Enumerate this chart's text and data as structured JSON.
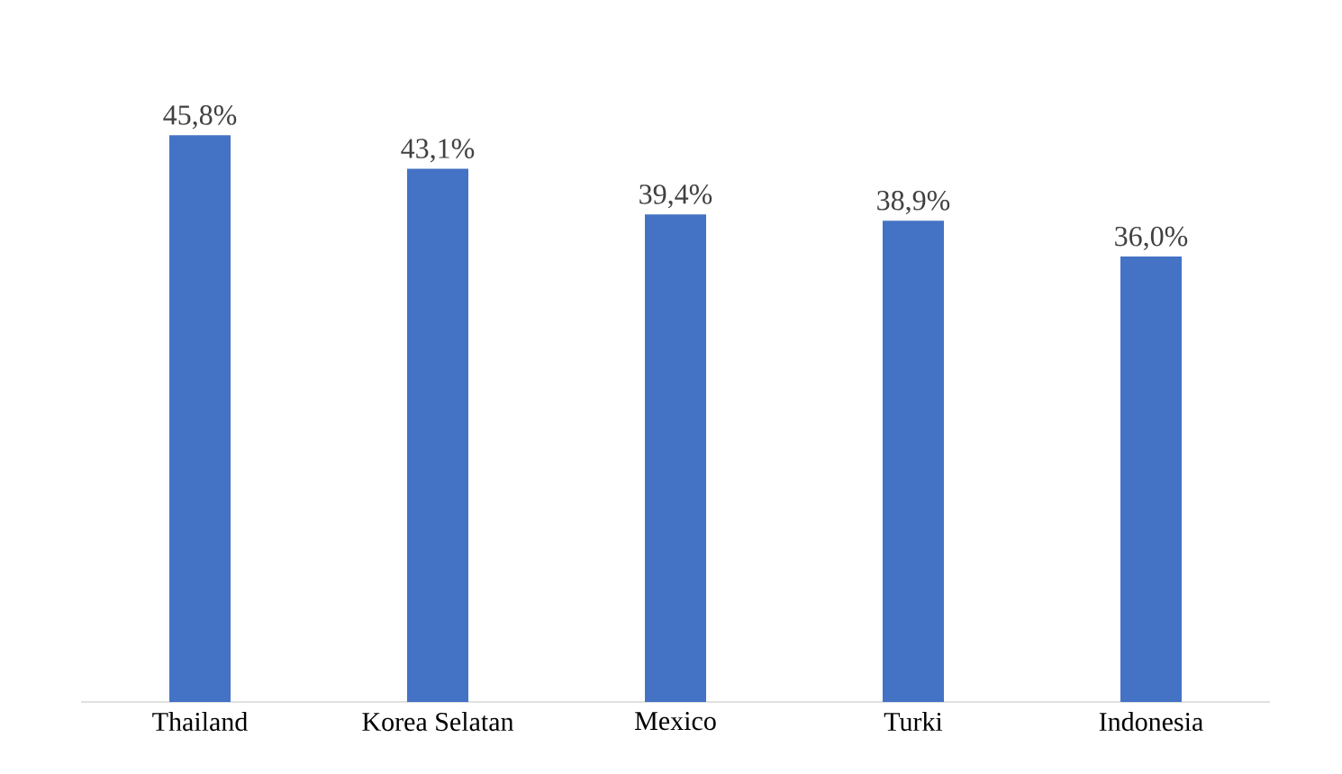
{
  "chart_data": {
    "type": "bar",
    "categories": [
      "Thailand",
      "Korea Selatan",
      "Mexico",
      "Turki",
      "Indonesia"
    ],
    "values": [
      45.8,
      43.1,
      39.4,
      38.9,
      36.0
    ],
    "value_labels": [
      "45,8%",
      "43,1%",
      "39,4%",
      "38,9%",
      "36,0%"
    ],
    "color": "#4472c4",
    "tick_labels": "x"
  }
}
